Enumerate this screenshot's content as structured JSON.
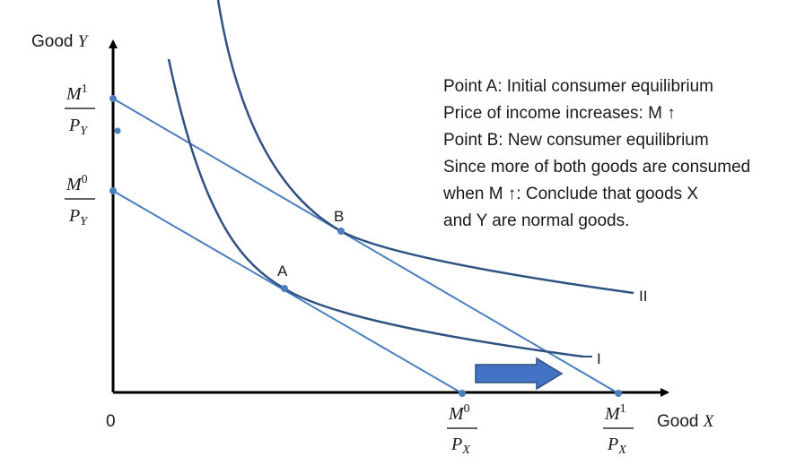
{
  "axes": {
    "y_label_text": "Good ",
    "y_label_var": "Y",
    "x_label_text": "Good ",
    "x_label_var": "X",
    "origin": "0"
  },
  "intercepts": {
    "y_high": {
      "num": "M",
      "sup": "1",
      "den": "P",
      "sub": "Y"
    },
    "y_low": {
      "num": "M",
      "sup": "0",
      "den": "P",
      "sub": "Y"
    },
    "x_low": {
      "num": "M",
      "sup": "0",
      "den": "P",
      "sub": "X"
    },
    "x_high": {
      "num": "M",
      "sup": "1",
      "den": "P",
      "sub": "X"
    }
  },
  "points": {
    "a": "A",
    "b": "B"
  },
  "curves": {
    "i1": "I",
    "i2": "II"
  },
  "notes": [
    "Point A: Initial consumer equilibrium",
    "Price of income increases: M ↑",
    "Point B: New consumer equilibrium",
    "Since more of both goods are consumed",
    "when M ↑: Conclude that goods X",
    "and Y are normal goods."
  ],
  "colors": {
    "axis": "#000000",
    "budget_line": "#4a7fbf",
    "indifference": "#2f5283",
    "arrow_fill": "#4472c4",
    "arrow_stroke": "#2f5283"
  }
}
